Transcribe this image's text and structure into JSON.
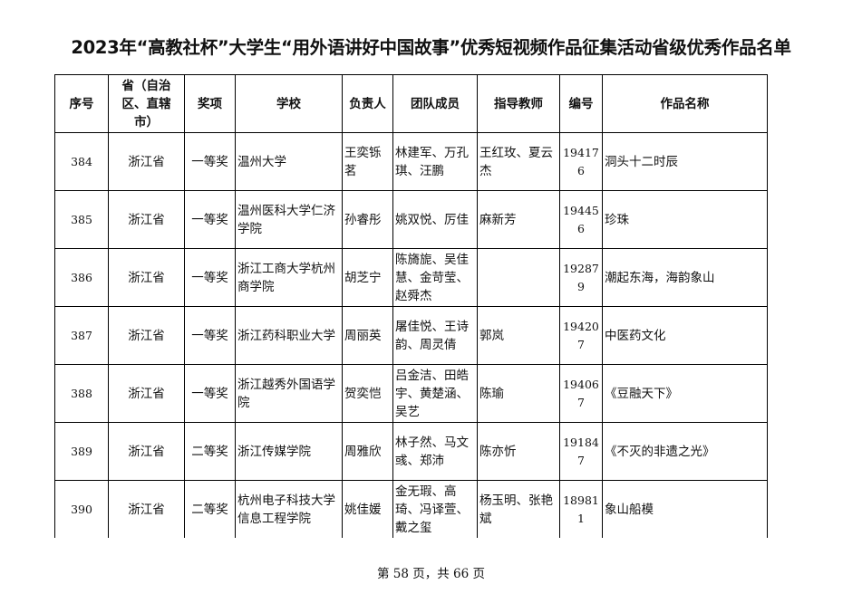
{
  "title": "2023年“高教社杯”大学生“用外语讲好中国故事”优秀短视频作品征集活动省级优秀作品名单",
  "table": {
    "headers": [
      "序号",
      "省（自治区、直辖市）",
      "奖项",
      "学校",
      "负责人",
      "团队成员",
      "指导教师",
      "编号",
      "作品名称"
    ],
    "rows": [
      {
        "no": "384",
        "province": "浙江省",
        "award": "一等奖",
        "school": "温州大学",
        "leader": "王奕铄茗",
        "members": "林建军、万孔琪、汪鹏",
        "advisor": "王红玫、夏云杰",
        "code": "194176",
        "work": "洞头十二时辰"
      },
      {
        "no": "385",
        "province": "浙江省",
        "award": "一等奖",
        "school": "温州医科大学仁济学院",
        "leader": "孙睿彤",
        "members": "姚双悦、厉佳",
        "advisor": "麻新芳",
        "code": "194456",
        "work": "珍珠"
      },
      {
        "no": "386",
        "province": "浙江省",
        "award": "一等奖",
        "school": "浙江工商大学杭州商学院",
        "leader": "胡芝宁",
        "members": "陈旖旎、吴佳慧、金苛莹、赵舜杰",
        "advisor": "",
        "code": "192879",
        "work": "潮起东海，海韵象山"
      },
      {
        "no": "387",
        "province": "浙江省",
        "award": "一等奖",
        "school": "浙江药科职业大学",
        "leader": "周丽英",
        "members": "屠佳悦、王诗韵、周灵倩",
        "advisor": "郭岚",
        "code": "194207",
        "work": "中医药文化"
      },
      {
        "no": "388",
        "province": "浙江省",
        "award": "一等奖",
        "school": "浙江越秀外国语学院",
        "leader": "贺奕恺",
        "members": "吕金洁、田皓宇、黄楚涵、吴艺",
        "advisor": "陈瑜",
        "code": "194067",
        "work": "《豆融天下》"
      },
      {
        "no": "389",
        "province": "浙江省",
        "award": "二等奖",
        "school": "浙江传媒学院",
        "leader": "周雅欣",
        "members": "林子然、马文彧、郑沛",
        "advisor": "陈亦忻",
        "code": "191847",
        "work": "《不灭的非遗之光》"
      },
      {
        "no": "390",
        "province": "浙江省",
        "award": "二等奖",
        "school": "杭州电子科技大学信息工程学院",
        "leader": "姚佳媛",
        "members": "金无瑕、高琦、冯译萱、戴之玺",
        "advisor": "杨玉明、张艳斌",
        "code": "189811",
        "work": "象山船模"
      }
    ]
  },
  "footer": "第 58 页，共 66 页"
}
